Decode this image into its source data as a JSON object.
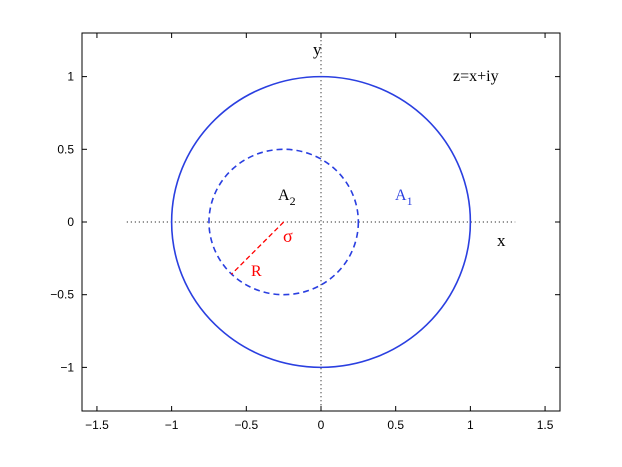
{
  "figure": {
    "annotations": {
      "y_axis_label": "y",
      "x_axis_label": "x",
      "equation": "z=x+iy",
      "region_inner": {
        "base": "A",
        "sub": "2"
      },
      "region_outer": {
        "base": "A",
        "sub": "1"
      },
      "center_label": "σ",
      "radius_label": "R"
    },
    "colors": {
      "circle": "#2a3fe0",
      "radius": "#ff0000",
      "axes": "#000000"
    }
  },
  "chart_data": {
    "type": "diagram",
    "xlim": [
      -1.6,
      1.6
    ],
    "ylim": [
      -1.3,
      1.3
    ],
    "x_ticks": [
      -1.5,
      -1,
      -0.5,
      0,
      0.5,
      1,
      1.5
    ],
    "x_tick_labels": [
      "−1.5",
      "−1",
      "−0.5",
      "0",
      "0.5",
      "1",
      "1.5"
    ],
    "y_ticks": [
      1,
      0.5,
      0,
      -0.5,
      -1
    ],
    "y_tick_labels": [
      "1",
      "0.5",
      "0",
      "−0.5",
      "−1"
    ],
    "grid": false,
    "dotted_axes": {
      "x_extent": [
        -1.3,
        1.3
      ],
      "y_extent": [
        -1.3,
        1.25
      ]
    },
    "shapes": [
      {
        "kind": "circle",
        "name": "unit-circle",
        "center": [
          0,
          0
        ],
        "radius": 1,
        "style": "solid"
      },
      {
        "kind": "circle",
        "name": "inner-circle",
        "center": [
          -0.25,
          0
        ],
        "radius": 0.5,
        "style": "dashed"
      },
      {
        "kind": "segment",
        "name": "radius-segment",
        "from": [
          -0.25,
          0
        ],
        "to": [
          -0.6,
          -0.36
        ],
        "style": "dashed"
      }
    ]
  }
}
